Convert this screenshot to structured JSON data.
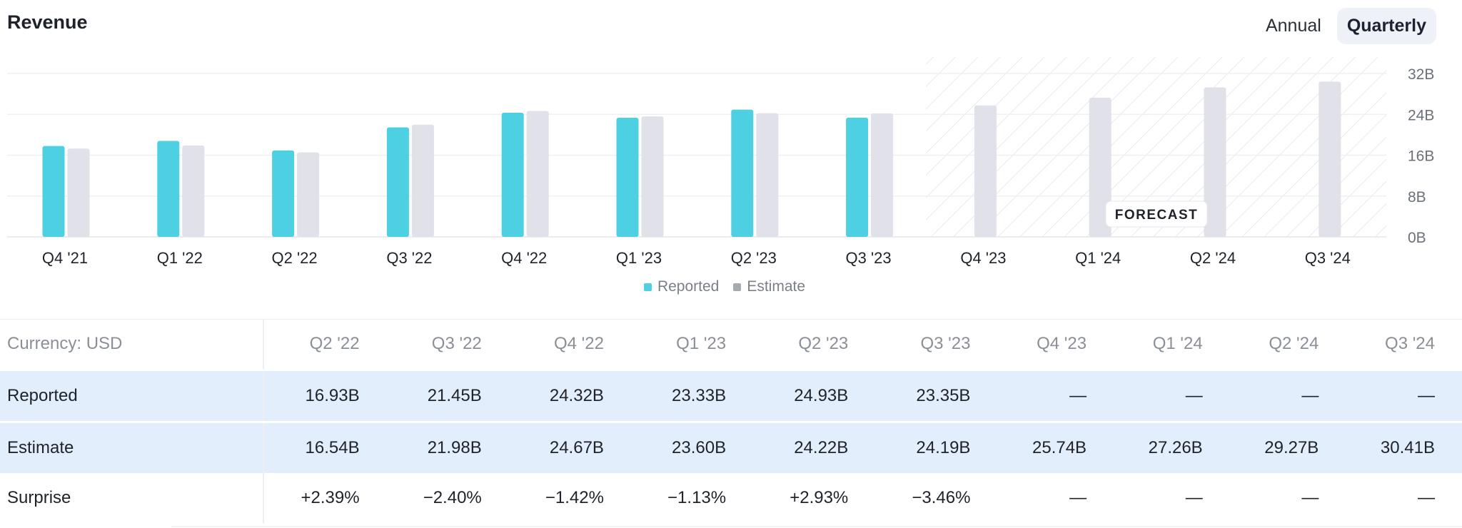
{
  "header": {
    "title": "Revenue"
  },
  "toggle": {
    "annual": "Annual",
    "quarterly": "Quarterly",
    "selected": "Quarterly"
  },
  "colors": {
    "reported": "#4dd0e1",
    "estimate": "#e0e1e9",
    "positive": "#1d9b6c",
    "negative": "#e5323f"
  },
  "forecast_label": "FORECAST",
  "legend": {
    "reported": "Reported",
    "estimate": "Estimate"
  },
  "chart_data": {
    "type": "bar",
    "categories": [
      "Q4 '21",
      "Q1 '22",
      "Q2 '22",
      "Q3 '22",
      "Q4 '22",
      "Q1 '23",
      "Q2 '23",
      "Q3 '23",
      "Q4 '23",
      "Q1 '24",
      "Q2 '24",
      "Q3 '24"
    ],
    "series": [
      {
        "name": "Reported",
        "values": [
          17.8,
          18.8,
          16.93,
          21.45,
          24.32,
          23.33,
          24.93,
          23.35,
          null,
          null,
          null,
          null
        ]
      },
      {
        "name": "Estimate",
        "values": [
          17.3,
          17.9,
          16.54,
          21.98,
          24.67,
          23.6,
          24.22,
          24.19,
          25.74,
          27.26,
          29.27,
          30.41
        ]
      }
    ],
    "yticks": [
      "0B",
      "8B",
      "16B",
      "24B",
      "32B"
    ],
    "ylim": [
      0,
      32
    ],
    "forecast_categories": [
      "Q4 '23",
      "Q1 '24",
      "Q2 '24",
      "Q3 '24"
    ],
    "legend_position": "bottom",
    "grid": true
  },
  "table": {
    "currency_label": "Currency: USD",
    "columns": [
      "Q2 '22",
      "Q3 '22",
      "Q4 '22",
      "Q1 '23",
      "Q2 '23",
      "Q3 '23",
      "Q4 '23",
      "Q1 '24",
      "Q2 '24",
      "Q3 '24"
    ],
    "rows": [
      {
        "label": "Reported",
        "values": [
          "16.93B",
          "21.45B",
          "24.32B",
          "23.33B",
          "24.93B",
          "23.35B",
          "—",
          "—",
          "—",
          "—"
        ]
      },
      {
        "label": "Estimate",
        "values": [
          "16.54B",
          "21.98B",
          "24.67B",
          "23.60B",
          "24.22B",
          "24.19B",
          "25.74B",
          "27.26B",
          "29.27B",
          "30.41B"
        ]
      },
      {
        "label": "Surprise",
        "values": [
          "+2.39%",
          "−2.40%",
          "−1.42%",
          "−1.13%",
          "+2.93%",
          "−3.46%",
          "—",
          "—",
          "—",
          "—"
        ]
      }
    ]
  }
}
